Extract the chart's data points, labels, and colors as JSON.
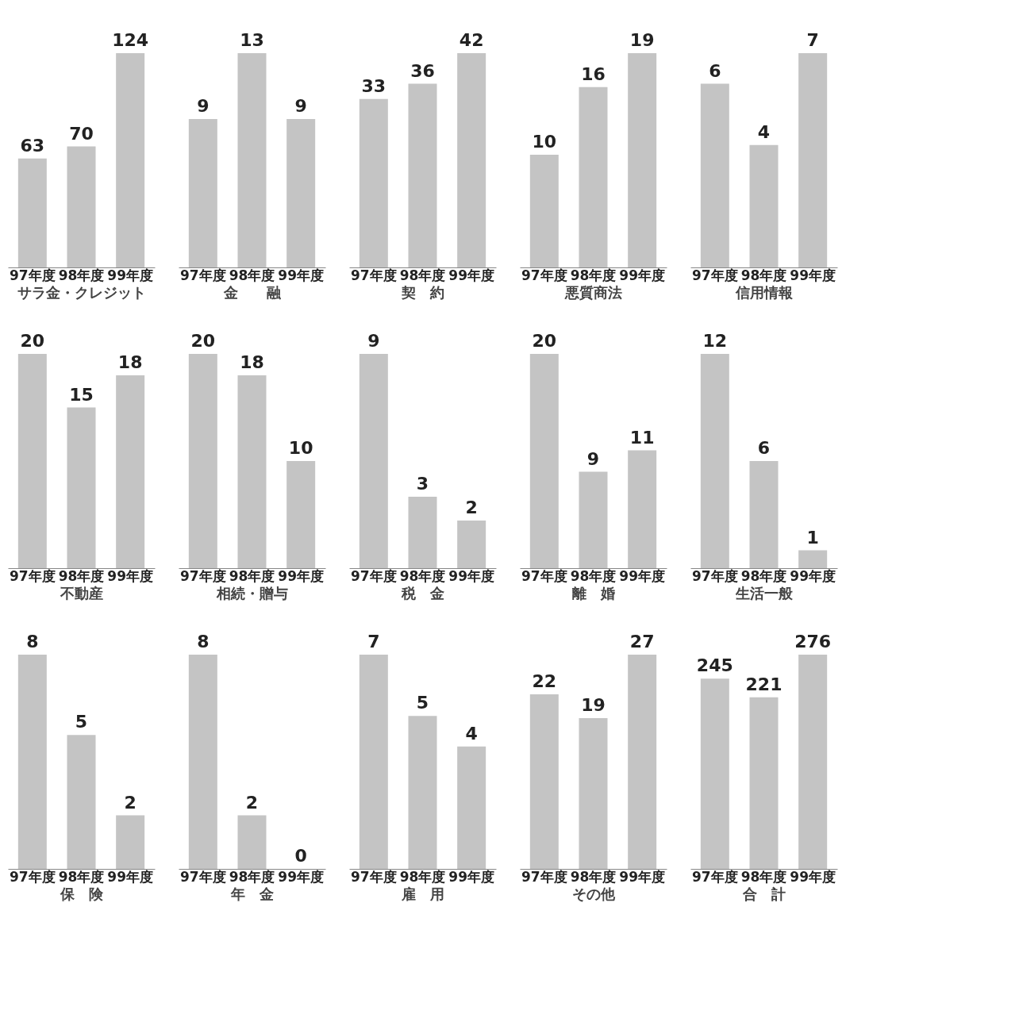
{
  "chart_data": [
    {
      "type": "bar",
      "title": "サラ金・クレジット",
      "categories": [
        "97年度",
        "98年度",
        "99年度"
      ],
      "values": [
        63,
        70,
        124
      ],
      "color": "#c4c4c4",
      "data_labels": true
    },
    {
      "type": "bar",
      "title": "金　　融",
      "categories": [
        "97年度",
        "98年度",
        "99年度"
      ],
      "values": [
        9,
        13,
        9
      ],
      "color": "#c4c4c4",
      "data_labels": true
    },
    {
      "type": "bar",
      "title": "契　約",
      "categories": [
        "97年度",
        "98年度",
        "99年度"
      ],
      "values": [
        33,
        36,
        42
      ],
      "color": "#c4c4c4",
      "data_labels": true
    },
    {
      "type": "bar",
      "title": "悪質商法",
      "categories": [
        "97年度",
        "98年度",
        "99年度"
      ],
      "values": [
        10,
        16,
        19
      ],
      "color": "#c4c4c4",
      "data_labels": true
    },
    {
      "type": "bar",
      "title": "信用情報",
      "categories": [
        "97年度",
        "98年度",
        "99年度"
      ],
      "values": [
        6,
        4,
        7
      ],
      "color": "#c4c4c4",
      "data_labels": true
    },
    {
      "type": "bar",
      "title": "不動産",
      "categories": [
        "97年度",
        "98年度",
        "99年度"
      ],
      "values": [
        20,
        15,
        18
      ],
      "color": "#c4c4c4",
      "data_labels": true
    },
    {
      "type": "bar",
      "title": "相続・贈与",
      "categories": [
        "97年度",
        "98年度",
        "99年度"
      ],
      "values": [
        20,
        18,
        10
      ],
      "color": "#c4c4c4",
      "data_labels": true
    },
    {
      "type": "bar",
      "title": "税　金",
      "categories": [
        "97年度",
        "98年度",
        "99年度"
      ],
      "values": [
        9,
        3,
        2
      ],
      "color": "#c4c4c4",
      "data_labels": true
    },
    {
      "type": "bar",
      "title": "離　婚",
      "categories": [
        "97年度",
        "98年度",
        "99年度"
      ],
      "values": [
        20,
        9,
        11
      ],
      "color": "#c4c4c4",
      "data_labels": true
    },
    {
      "type": "bar",
      "title": "生活一般",
      "categories": [
        "97年度",
        "98年度",
        "99年度"
      ],
      "values": [
        12,
        6,
        1
      ],
      "color": "#c4c4c4",
      "data_labels": true
    },
    {
      "type": "bar",
      "title": "保　険",
      "categories": [
        "97年度",
        "98年度",
        "99年度"
      ],
      "values": [
        8,
        5,
        2
      ],
      "color": "#c4c4c4",
      "data_labels": true
    },
    {
      "type": "bar",
      "title": "年　金",
      "categories": [
        "97年度",
        "98年度",
        "99年度"
      ],
      "values": [
        8,
        2,
        0
      ],
      "color": "#c4c4c4",
      "data_labels": true
    },
    {
      "type": "bar",
      "title": "雇　用",
      "categories": [
        "97年度",
        "98年度",
        "99年度"
      ],
      "values": [
        7,
        5,
        4
      ],
      "color": "#c4c4c4",
      "data_labels": true
    },
    {
      "type": "bar",
      "title": "その他",
      "categories": [
        "97年度",
        "98年度",
        "99年度"
      ],
      "values": [
        22,
        19,
        27
      ],
      "color": "#c4c4c4",
      "data_labels": true
    },
    {
      "type": "bar",
      "title": "合　計",
      "categories": [
        "97年度",
        "98年度",
        "99年度"
      ],
      "values": [
        245,
        221,
        276
      ],
      "color": "#c4c4c4",
      "data_labels": true
    }
  ]
}
